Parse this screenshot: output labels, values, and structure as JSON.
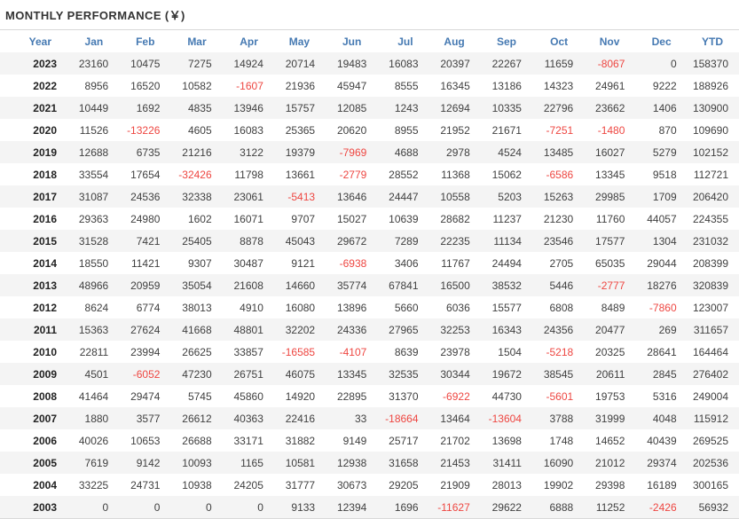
{
  "title": "MONTHLY PERFORMANCE (￥)",
  "colors": {
    "header_text": "#4579b2",
    "negative_value": "#ee4641",
    "row_stripe": "#f4f4f4",
    "title_text": "#333333",
    "value_text": "#404040",
    "rule": "#d9d9d9"
  },
  "chart_data": {
    "type": "table",
    "title": "MONTHLY PERFORMANCE (￥)",
    "columns": [
      "Year",
      "Jan",
      "Feb",
      "Mar",
      "Apr",
      "May",
      "Jun",
      "Jul",
      "Aug",
      "Sep",
      "Oct",
      "Nov",
      "Dec",
      "YTD"
    ],
    "rows": [
      {
        "year": "2023",
        "values": [
          23160,
          10475,
          7275,
          14924,
          20714,
          19483,
          16083,
          20397,
          22267,
          11659,
          -8067,
          0,
          158370
        ]
      },
      {
        "year": "2022",
        "values": [
          8956,
          16520,
          10582,
          -1607,
          21936,
          45947,
          8555,
          16345,
          13186,
          14323,
          24961,
          9222,
          188926
        ]
      },
      {
        "year": "2021",
        "values": [
          10449,
          1692,
          4835,
          13946,
          15757,
          12085,
          1243,
          12694,
          10335,
          22796,
          23662,
          1406,
          130900
        ]
      },
      {
        "year": "2020",
        "values": [
          11526,
          -13226,
          4605,
          16083,
          25365,
          20620,
          8955,
          21952,
          21671,
          -7251,
          -1480,
          870,
          109690
        ]
      },
      {
        "year": "2019",
        "values": [
          12688,
          6735,
          21216,
          3122,
          19379,
          -7969,
          4688,
          2978,
          4524,
          13485,
          16027,
          5279,
          102152
        ]
      },
      {
        "year": "2018",
        "values": [
          33554,
          17654,
          -32426,
          11798,
          13661,
          -2779,
          28552,
          11368,
          15062,
          -6586,
          13345,
          9518,
          112721
        ]
      },
      {
        "year": "2017",
        "values": [
          31087,
          24536,
          32338,
          23061,
          -5413,
          13646,
          24447,
          10558,
          5203,
          15263,
          29985,
          1709,
          206420
        ]
      },
      {
        "year": "2016",
        "values": [
          29363,
          24980,
          1602,
          16071,
          9707,
          15027,
          10639,
          28682,
          11237,
          21230,
          11760,
          44057,
          224355
        ]
      },
      {
        "year": "2015",
        "values": [
          31528,
          7421,
          25405,
          8878,
          45043,
          29672,
          7289,
          22235,
          11134,
          23546,
          17577,
          1304,
          231032
        ]
      },
      {
        "year": "2014",
        "values": [
          18550,
          11421,
          9307,
          30487,
          9121,
          -6938,
          3406,
          11767,
          24494,
          2705,
          65035,
          29044,
          208399
        ]
      },
      {
        "year": "2013",
        "values": [
          48966,
          20959,
          35054,
          21608,
          14660,
          35774,
          67841,
          16500,
          38532,
          5446,
          -2777,
          18276,
          320839
        ]
      },
      {
        "year": "2012",
        "values": [
          8624,
          6774,
          38013,
          4910,
          16080,
          13896,
          5660,
          6036,
          15577,
          6808,
          8489,
          -7860,
          123007
        ]
      },
      {
        "year": "2011",
        "values": [
          15363,
          27624,
          41668,
          48801,
          32202,
          24336,
          27965,
          32253,
          16343,
          24356,
          20477,
          269,
          311657
        ]
      },
      {
        "year": "2010",
        "values": [
          22811,
          23994,
          26625,
          33857,
          -16585,
          -4107,
          8639,
          23978,
          1504,
          -5218,
          20325,
          28641,
          164464
        ]
      },
      {
        "year": "2009",
        "values": [
          4501,
          -6052,
          47230,
          26751,
          46075,
          13345,
          32535,
          30344,
          19672,
          38545,
          20611,
          2845,
          276402
        ]
      },
      {
        "year": "2008",
        "values": [
          41464,
          29474,
          5745,
          45860,
          14920,
          22895,
          31370,
          -6922,
          44730,
          -5601,
          19753,
          5316,
          249004
        ]
      },
      {
        "year": "2007",
        "values": [
          1880,
          3577,
          26612,
          40363,
          22416,
          33,
          -18664,
          13464,
          -13604,
          3788,
          31999,
          4048,
          115912
        ]
      },
      {
        "year": "2006",
        "values": [
          40026,
          10653,
          26688,
          33171,
          31882,
          9149,
          25717,
          21702,
          13698,
          1748,
          14652,
          40439,
          269525
        ]
      },
      {
        "year": "2005",
        "values": [
          7619,
          9142,
          10093,
          1165,
          10581,
          12938,
          31658,
          21453,
          31411,
          16090,
          21012,
          29374,
          202536
        ]
      },
      {
        "year": "2004",
        "values": [
          33225,
          24731,
          10938,
          24205,
          31777,
          30673,
          29205,
          21909,
          28013,
          19902,
          29398,
          16189,
          300165
        ]
      },
      {
        "year": "2003",
        "values": [
          0,
          0,
          0,
          0,
          9133,
          12394,
          1696,
          -11627,
          29622,
          6888,
          11252,
          -2426,
          56932
        ]
      }
    ]
  }
}
